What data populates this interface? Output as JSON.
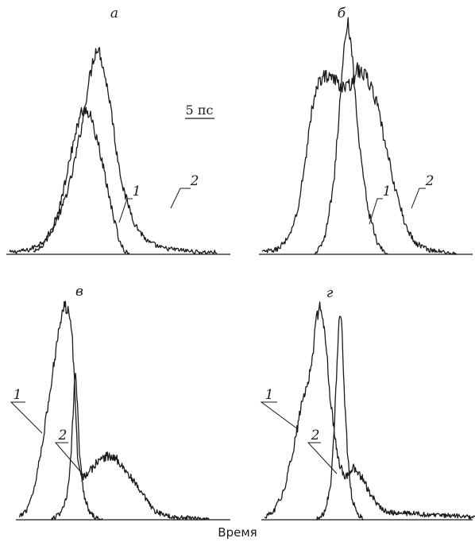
{
  "figure": {
    "xlabel": "Время",
    "scale_bar_label": "5 пс"
  },
  "chart_data": [
    {
      "type": "line",
      "panel": "а",
      "y_ticks": "none",
      "series": [
        {
          "name": "1",
          "points": [
            [
              0,
              0.01
            ],
            [
              20,
              0.02
            ],
            [
              35,
              0.06
            ],
            [
              45,
              0.12
            ],
            [
              55,
              0.22
            ],
            [
              65,
              0.37
            ],
            [
              75,
              0.6
            ],
            [
              82,
              0.8
            ],
            [
              88,
              0.94
            ],
            [
              92,
              1.0
            ],
            [
              96,
              0.95
            ],
            [
              100,
              0.86
            ],
            [
              106,
              0.72
            ],
            [
              112,
              0.5
            ],
            [
              120,
              0.3
            ],
            [
              132,
              0.14
            ],
            [
              145,
              0.06
            ],
            [
              160,
              0.03
            ],
            [
              180,
              0.02
            ],
            [
              200,
              0.01
            ],
            [
              218,
              0.01
            ]
          ]
        },
        {
          "name": "2",
          "points": [
            [
              25,
              0.01
            ],
            [
              35,
              0.04
            ],
            [
              45,
              0.12
            ],
            [
              55,
              0.27
            ],
            [
              65,
              0.5
            ],
            [
              75,
              0.68
            ],
            [
              80,
              0.7
            ],
            [
              85,
              0.66
            ],
            [
              92,
              0.55
            ],
            [
              100,
              0.38
            ],
            [
              108,
              0.2
            ],
            [
              115,
              0.07
            ],
            [
              120,
              0.02
            ],
            [
              126,
              0.0
            ]
          ]
        }
      ]
    },
    {
      "type": "line",
      "panel": "б",
      "y_ticks": "none",
      "series": [
        {
          "name": "1",
          "points": [
            [
              0,
              0.01
            ],
            [
              15,
              0.02
            ],
            [
              28,
              0.07
            ],
            [
              38,
              0.2
            ],
            [
              45,
              0.4
            ],
            [
              52,
              0.62
            ],
            [
              60,
              0.76
            ],
            [
              70,
              0.78
            ],
            [
              80,
              0.74
            ],
            [
              90,
              0.72
            ],
            [
              100,
              0.8
            ],
            [
              110,
              0.77
            ],
            [
              120,
              0.66
            ],
            [
              130,
              0.46
            ],
            [
              140,
              0.28
            ],
            [
              150,
              0.13
            ],
            [
              160,
              0.05
            ],
            [
              175,
              0.02
            ],
            [
              190,
              0.01
            ],
            [
              205,
              0.0
            ]
          ]
        },
        {
          "name": "2",
          "points": [
            [
              55,
              0.0
            ],
            [
              65,
              0.06
            ],
            [
              75,
              0.3
            ],
            [
              82,
              0.68
            ],
            [
              86,
              0.9
            ],
            [
              90,
              1.0
            ],
            [
              94,
              0.9
            ],
            [
              98,
              0.66
            ],
            [
              104,
              0.4
            ],
            [
              112,
              0.18
            ],
            [
              120,
              0.06
            ],
            [
              126,
              0.02
            ],
            [
              132,
              0.0
            ]
          ]
        }
      ]
    },
    {
      "type": "line",
      "panel": "в",
      "y_ticks": "none",
      "series": [
        {
          "name": "1",
          "points": [
            [
              0,
              0.01
            ],
            [
              10,
              0.05
            ],
            [
              20,
              0.16
            ],
            [
              30,
              0.38
            ],
            [
              40,
              0.62
            ],
            [
              48,
              0.85
            ],
            [
              53,
              0.96
            ],
            [
              57,
              1.0
            ],
            [
              62,
              1.0
            ],
            [
              66,
              0.92
            ],
            [
              70,
              0.62
            ],
            [
              74,
              0.28
            ],
            [
              80,
              0.2
            ],
            [
              88,
              0.22
            ],
            [
              100,
              0.28
            ],
            [
              112,
              0.3
            ],
            [
              125,
              0.28
            ],
            [
              140,
              0.2
            ],
            [
              155,
              0.12
            ],
            [
              170,
              0.04
            ],
            [
              185,
              0.02
            ],
            [
              200,
              0.01
            ],
            [
              220,
              0.01
            ],
            [
              240,
              0.0
            ]
          ]
        },
        {
          "name": "2",
          "points": [
            [
              40,
              0.0
            ],
            [
              52,
              0.03
            ],
            [
              60,
              0.1
            ],
            [
              65,
              0.28
            ],
            [
              69,
              0.58
            ],
            [
              71,
              0.72
            ],
            [
              73,
              0.58
            ],
            [
              76,
              0.32
            ],
            [
              81,
              0.13
            ],
            [
              88,
              0.04
            ],
            [
              96,
              0.01
            ],
            [
              105,
              0.0
            ]
          ]
        }
      ]
    },
    {
      "type": "line",
      "panel": "г",
      "y_ticks": "none",
      "series": [
        {
          "name": "1",
          "points": [
            [
              0,
              0.01
            ],
            [
              12,
              0.04
            ],
            [
              25,
              0.14
            ],
            [
              38,
              0.36
            ],
            [
              48,
              0.56
            ],
            [
              55,
              0.64
            ],
            [
              60,
              0.75
            ],
            [
              65,
              0.92
            ],
            [
              69,
              1.0
            ],
            [
              73,
              0.97
            ],
            [
              78,
              0.8
            ],
            [
              82,
              0.6
            ],
            [
              88,
              0.4
            ],
            [
              94,
              0.26
            ],
            [
              102,
              0.2
            ],
            [
              112,
              0.24
            ],
            [
              122,
              0.2
            ],
            [
              132,
              0.13
            ],
            [
              142,
              0.07
            ],
            [
              152,
              0.04
            ],
            [
              165,
              0.03
            ],
            [
              185,
              0.03
            ],
            [
              210,
              0.02
            ],
            [
              240,
              0.02
            ],
            [
              265,
              0.01
            ]
          ]
        },
        {
          "name": "2",
          "points": [
            [
              65,
              0.0
            ],
            [
              75,
              0.03
            ],
            [
              83,
              0.15
            ],
            [
              88,
              0.45
            ],
            [
              92,
              0.8
            ],
            [
              95,
              0.98
            ],
            [
              98,
              0.85
            ],
            [
              101,
              0.55
            ],
            [
              105,
              0.28
            ],
            [
              110,
              0.1
            ],
            [
              117,
              0.03
            ],
            [
              125,
              0.0
            ]
          ]
        }
      ]
    }
  ]
}
